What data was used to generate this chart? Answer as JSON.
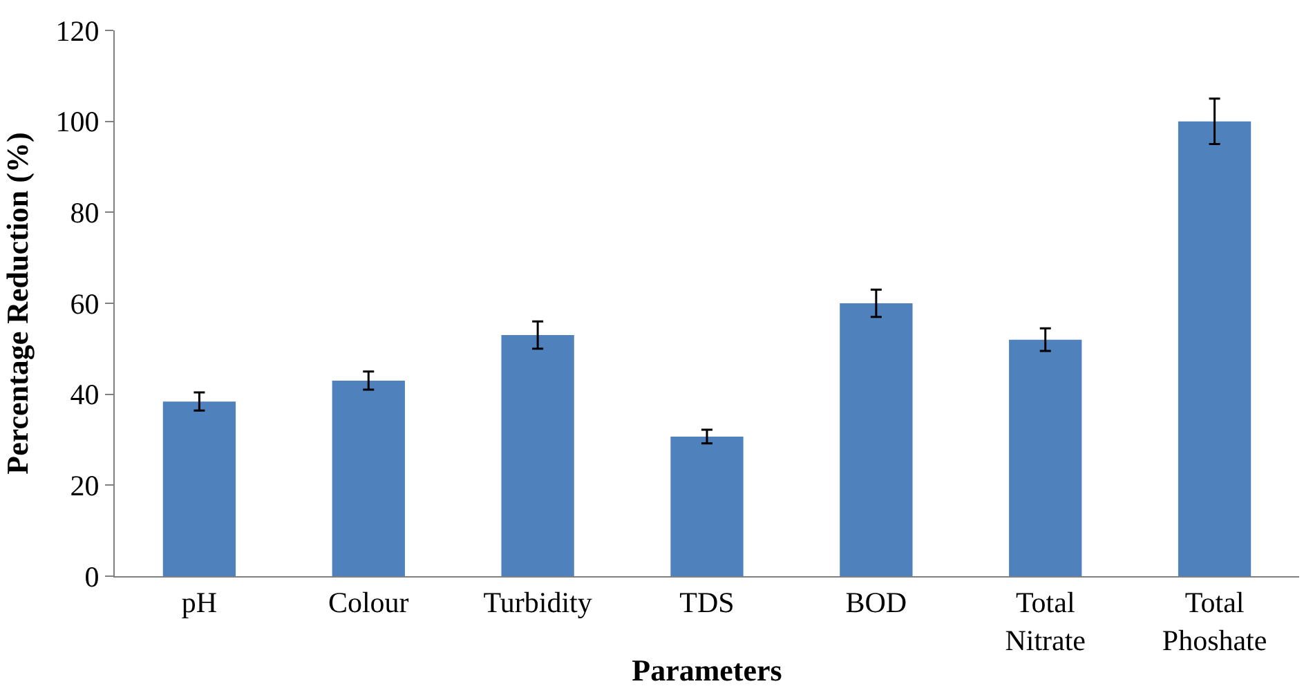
{
  "chart_data": {
    "type": "bar",
    "xlabel": "Parameters",
    "ylabel": "Percentage Reduction (%)",
    "categories": [
      "pH",
      "Colour",
      "Turbidity",
      "TDS",
      "BOD",
      "Total Nitrate",
      "Total Phoshate"
    ],
    "values": [
      38.4,
      43,
      53,
      30.7,
      60,
      52,
      100
    ],
    "errors": [
      2,
      2,
      3,
      1.5,
      3,
      2.5,
      5
    ],
    "color": "#4f81bd",
    "ylim": [
      0,
      120
    ],
    "yticks": [
      0,
      20,
      40,
      60,
      80,
      100,
      120
    ]
  }
}
